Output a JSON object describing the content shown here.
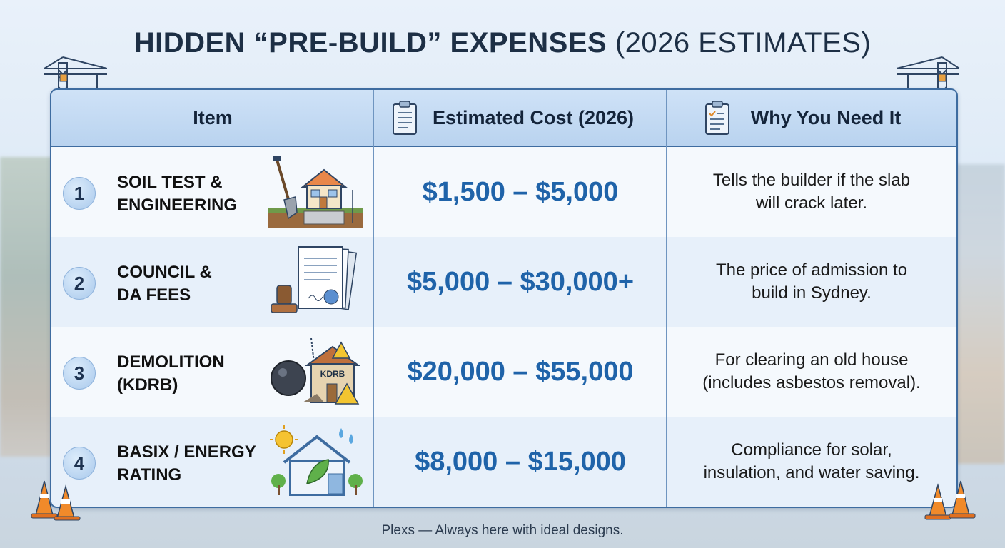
{
  "title": {
    "bold": "HIDDEN “PRE-BUILD” EXPENSES",
    "light": "(2026 ESTIMATES)"
  },
  "table": {
    "headers": [
      "Item",
      "Estimated Cost (2026)",
      "Why You Need It"
    ],
    "rows": [
      {
        "num": "1",
        "item_line1": "SOIL TEST &",
        "item_line2": "ENGINEERING",
        "cost": "$1,500 – $5,000",
        "why_line1": "Tells the builder if the slab",
        "why_line2": "will crack later.",
        "icon": "soil-test-illustration"
      },
      {
        "num": "2",
        "item_line1": "COUNCIL &",
        "item_line2": "DA FEES",
        "cost": "$5,000 – $30,000+",
        "why_line1": "The price of admission to",
        "why_line2": "build in Sydney.",
        "icon": "council-documents-illustration"
      },
      {
        "num": "3",
        "item_line1": "DEMOLITION",
        "item_line2": "(KDRB)",
        "cost": "$20,000 – $55,000",
        "why_line1": "For clearing an old house",
        "why_line2": "(includes asbestos removal).",
        "icon": "demolition-illustration",
        "house_label": "KDRB"
      },
      {
        "num": "4",
        "item_line1": "BASIX / ENERGY",
        "item_line2": "RATING",
        "cost": "$8,000 – $15,000",
        "why_line1": "Compliance for solar,",
        "why_line2": "insulation, and water saving.",
        "icon": "energy-rating-illustration"
      }
    ]
  },
  "footer": "Plexs — Always here with ideal designs.",
  "colors": {
    "accent": "#1f63a9",
    "border": "#3e6ca0",
    "header_bg": "#c4dbf3"
  }
}
